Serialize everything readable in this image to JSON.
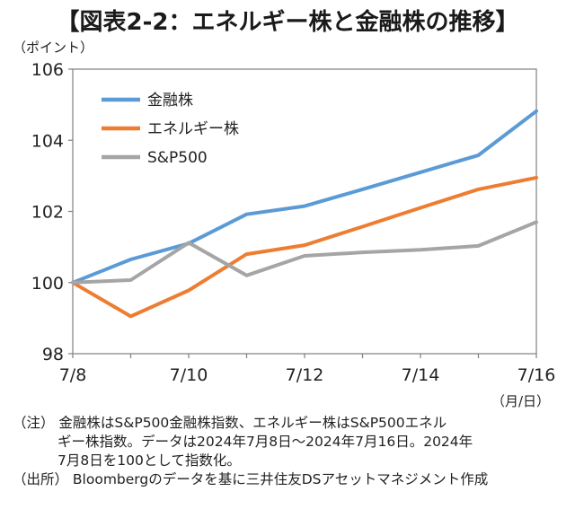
{
  "chart_data": {
    "type": "line",
    "title": "【図表2-2：エネルギー株と金融株の推移】",
    "y_unit": "（ポイント）",
    "x_unit": "（月/日）",
    "x": [
      "7/8",
      "7/9",
      "7/10",
      "7/11",
      "7/12",
      "7/13",
      "7/14",
      "7/15",
      "7/16"
    ],
    "x_tick_labels": [
      "7/8",
      "7/10",
      "7/12",
      "7/14",
      "7/16"
    ],
    "ylim": [
      98,
      106
    ],
    "y_ticks": [
      98,
      100,
      102,
      104,
      106
    ],
    "grid": false,
    "legend_position": "top-left",
    "series": [
      {
        "name": "金融株",
        "color": "#5b9bd5",
        "values": [
          100.0,
          100.65,
          101.1,
          101.92,
          102.15,
          102.62,
          103.1,
          103.58,
          104.82
        ]
      },
      {
        "name": "エネルギー株",
        "color": "#ed7d31",
        "values": [
          100.0,
          99.05,
          99.78,
          100.8,
          101.05,
          101.57,
          102.1,
          102.62,
          102.95
        ]
      },
      {
        "name": "S&P500",
        "color": "#a5a5a5",
        "values": [
          100.0,
          100.07,
          101.12,
          100.2,
          100.75,
          100.85,
          100.92,
          101.03,
          101.7
        ]
      }
    ]
  },
  "notes": {
    "note1_l1": "（注）  金融株はS&P500金融株指数、エネルギー株はS&P500エネル",
    "note1_l2": "ギー株指数。データは2024年7月8日～2024年7月16日。2024年",
    "note1_l3": "7月8日を100として指数化。",
    "source": "（出所）  Bloombergのデータを基に三井住友DSアセットマネジメント作成"
  }
}
